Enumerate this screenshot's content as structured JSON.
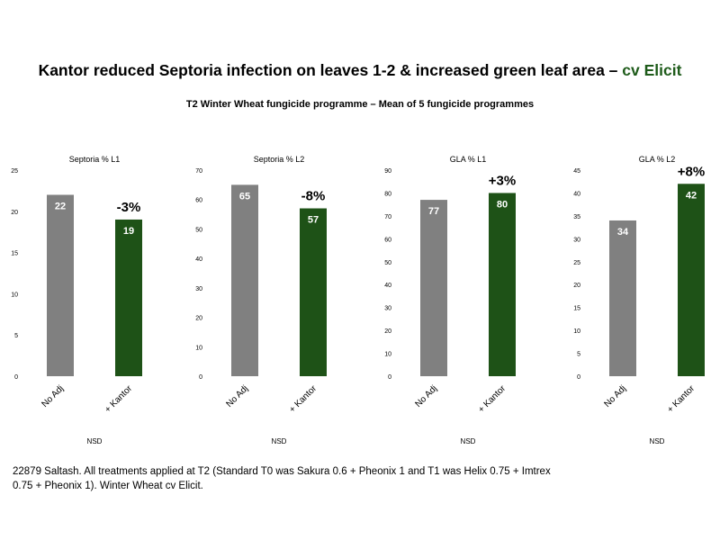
{
  "title": {
    "main": "Kantor reduced Septoria infection on leaves 1-2 & increased green leaf area – ",
    "accent": "cv Elicit"
  },
  "subtitle": "T2 Winter Wheat fungicide programme – Mean of 5 fungicide programmes",
  "colors": {
    "control": "#808080",
    "treatment": "#1e5217",
    "accent": "#1e5b1a"
  },
  "chart_data": [
    {
      "type": "bar",
      "title": "Septoria % L1",
      "categories": [
        "No Adj",
        "+ Kantor"
      ],
      "values": [
        22,
        19
      ],
      "data_labels": [
        "22",
        "19"
      ],
      "change_label": "-3%",
      "ylim": [
        0,
        25
      ],
      "yticks": [
        0,
        5,
        10,
        15,
        20,
        25
      ],
      "significance": "NSD"
    },
    {
      "type": "bar",
      "title": "Septoria % L2",
      "categories": [
        "No Adj",
        "+ Kantor"
      ],
      "values": [
        65,
        57
      ],
      "data_labels": [
        "65",
        "57"
      ],
      "change_label": "-8%",
      "ylim": [
        0,
        70
      ],
      "yticks": [
        0,
        10,
        20,
        30,
        40,
        50,
        60,
        70
      ],
      "significance": "NSD"
    },
    {
      "type": "bar",
      "title": "GLA % L1",
      "categories": [
        "No Adj",
        "+ Kantor"
      ],
      "values": [
        77,
        80
      ],
      "data_labels": [
        "77",
        "80"
      ],
      "change_label": "+3%",
      "ylim": [
        0,
        90
      ],
      "yticks": [
        0,
        10,
        20,
        30,
        40,
        50,
        60,
        70,
        80,
        90
      ],
      "significance": "NSD"
    },
    {
      "type": "bar",
      "title": "GLA % L2",
      "categories": [
        "No Adj",
        "+ Kantor"
      ],
      "values": [
        34,
        42
      ],
      "data_labels": [
        "34",
        "42"
      ],
      "change_label": "+8%",
      "ylim": [
        0,
        45
      ],
      "yticks": [
        0,
        5,
        10,
        15,
        20,
        25,
        30,
        35,
        40,
        45
      ],
      "significance": "NSD"
    }
  ],
  "footnote": "22879 Saltash.  All treatments applied at T2 (Standard T0 was Sakura 0.6 + Pheonix 1 and T1 was Helix 0.75 + Imtrex 0.75 + Pheonix 1).  Winter Wheat cv Elicit."
}
